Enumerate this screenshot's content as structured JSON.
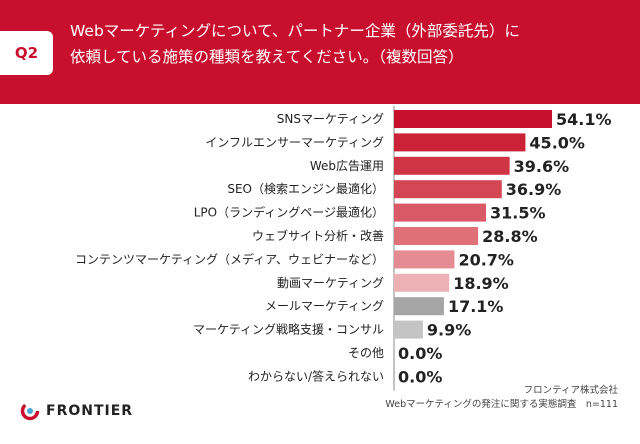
{
  "header": {
    "badge": "Q2",
    "question": "Webマーケティングについて、パートナー企業（外部委託先）に\n依頼している施策の種類を教えてください。（複数回答）"
  },
  "chart_data": {
    "type": "bar",
    "orientation": "horizontal",
    "categories": [
      "SNSマーケティング",
      "インフルエンサーマーケティング",
      "Web広告運用",
      "SEO（検索エンジン最適化）",
      "LPO（ランディングページ最適化）",
      "ウェブサイト分析・改善",
      "コンテンツマーケティング（メディア、ウェビナーなど）",
      "動画マーケティング",
      "メールマーケティング",
      "マーケティング戦略支援・コンサル",
      "その他",
      "わからない/答えられない"
    ],
    "values": [
      54.1,
      45.0,
      39.6,
      36.9,
      31.5,
      28.8,
      20.7,
      18.9,
      17.1,
      9.9,
      0.0,
      0.0
    ],
    "value_labels": [
      "54.1%",
      "45.0%",
      "39.6%",
      "36.9%",
      "31.5%",
      "28.8%",
      "20.7%",
      "18.9%",
      "17.1%",
      "9.9%",
      "0.0%",
      "0.0%"
    ],
    "colors": [
      "#c8102e",
      "#cc2238",
      "#d03545",
      "#d44654",
      "#d95a66",
      "#df7078",
      "#e58c92",
      "#edb0b4",
      "#a5a5a5",
      "#c4c4c4",
      "#c4c4c4",
      "#c4c4c4"
    ],
    "xlim": [
      0,
      54.1
    ],
    "grid": false,
    "legend": "none"
  },
  "footer": {
    "logo_text": "FRONTIER",
    "logo_icon": "frontier-logo-icon",
    "source_line1": "フロンティア株式会社",
    "source_line2": "Webマーケティングの発注に関する実態調査　n=111"
  },
  "colors": {
    "brand_red": "#c8102e",
    "header_text": "#ffffff"
  }
}
